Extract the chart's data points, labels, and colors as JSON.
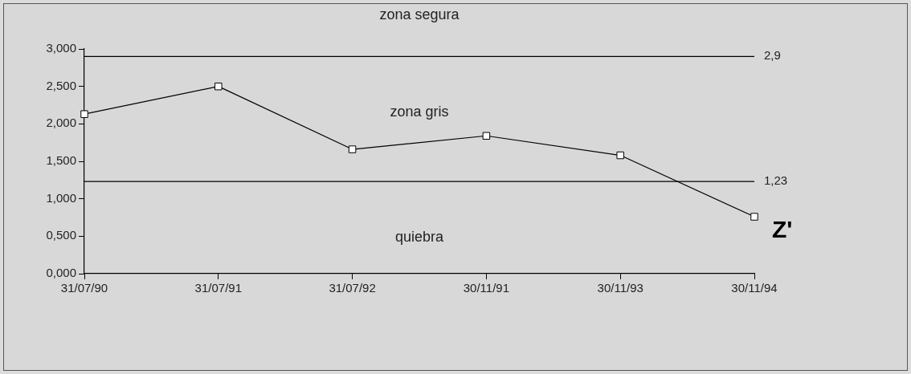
{
  "chart_data": {
    "type": "line",
    "categories": [
      "31/07/90",
      "31/07/91",
      "31/07/92",
      "30/11/91",
      "30/11/93",
      "30/11/94"
    ],
    "series": [
      {
        "name": "Z'",
        "color": "#000000",
        "values": [
          2.13,
          2.5,
          1.66,
          1.84,
          1.58,
          0.76
        ]
      }
    ],
    "ylim": [
      0,
      3
    ],
    "yticks": [
      {
        "value": 0,
        "label": "0,000"
      },
      {
        "value": 0.5,
        "label": "0,500"
      },
      {
        "value": 1,
        "label": "1,000"
      },
      {
        "value": 1.5,
        "label": "1,500"
      },
      {
        "value": 2,
        "label": "2,000"
      },
      {
        "value": 2.5,
        "label": "2,500"
      },
      {
        "value": 3,
        "label": "3,000"
      }
    ],
    "ref_lines": [
      {
        "axis": "y",
        "value": 2.9,
        "label": "2,9",
        "color": "#000000"
      },
      {
        "axis": "y",
        "value": 1.23,
        "label": "1,23",
        "color": "#000000"
      }
    ],
    "annotations": [
      "zona segura",
      "zona gris",
      "quiebra"
    ],
    "marker": "square",
    "line_style": "solid",
    "grid": false,
    "legend": false
  }
}
